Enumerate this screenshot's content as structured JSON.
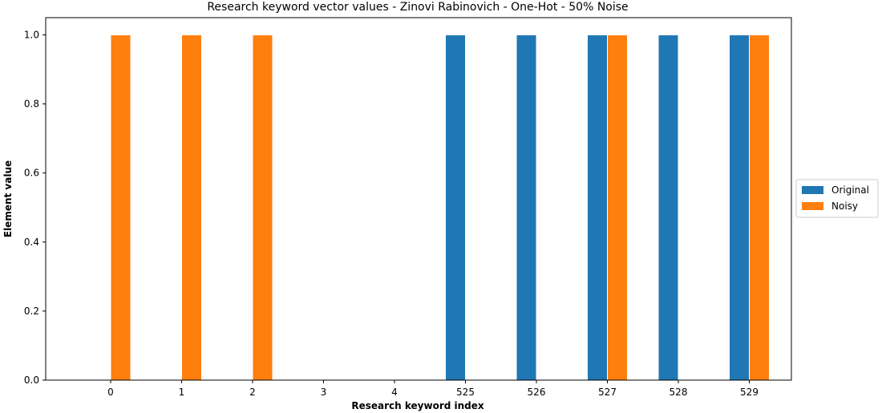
{
  "chart_data": {
    "type": "bar",
    "title": "Research keyword vector values - Zinovi Rabinovich - One-Hot - 50% Noise",
    "xlabel": "Research keyword index",
    "ylabel": "Element value",
    "categories": [
      "0",
      "1",
      "2",
      "3",
      "4",
      "525",
      "526",
      "527",
      "528",
      "529"
    ],
    "series": [
      {
        "name": "Original",
        "color": "#1f77b4",
        "values": [
          0,
          0,
          0,
          0,
          0,
          1,
          1,
          1,
          1,
          1
        ]
      },
      {
        "name": "Noisy",
        "color": "#ff7f0e",
        "values": [
          1,
          1,
          1,
          0,
          0,
          0,
          0,
          1,
          0,
          1
        ]
      }
    ],
    "ylim": [
      0,
      1.05
    ],
    "yticks": [
      "0.0",
      "0.2",
      "0.4",
      "0.6",
      "0.8",
      "1.0"
    ],
    "grid": false,
    "legend_position": "right"
  }
}
